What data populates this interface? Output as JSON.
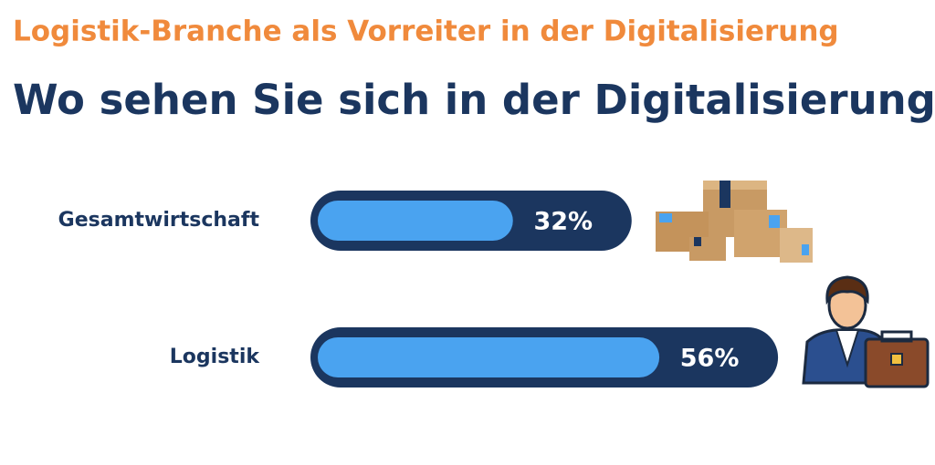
{
  "chart_data": {
    "type": "bar",
    "title": "Logistik-Branche als Vorreiter in der Digitalisierung",
    "subtitle": "Wo sehen Sie sich in der Digitalisierung?",
    "categories": [
      "Gesamtwirtschaft",
      "Logistik"
    ],
    "values": [
      32,
      56
    ],
    "value_labels": [
      "32%",
      "56%"
    ],
    "color": "#4aa3f0",
    "track_color": "#1b365f",
    "orientation": "horizontal"
  }
}
